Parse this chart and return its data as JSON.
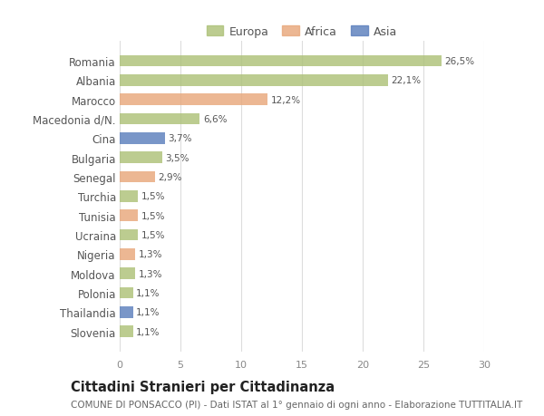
{
  "countries": [
    "Romania",
    "Albania",
    "Marocco",
    "Macedonia d/N.",
    "Cina",
    "Bulgaria",
    "Senegal",
    "Turchia",
    "Tunisia",
    "Ucraina",
    "Nigeria",
    "Moldova",
    "Polonia",
    "Thailandia",
    "Slovenia"
  ],
  "values": [
    26.5,
    22.1,
    12.2,
    6.6,
    3.7,
    3.5,
    2.9,
    1.5,
    1.5,
    1.5,
    1.3,
    1.3,
    1.1,
    1.1,
    1.1
  ],
  "labels": [
    "26,5%",
    "22,1%",
    "12,2%",
    "6,6%",
    "3,7%",
    "3,5%",
    "2,9%",
    "1,5%",
    "1,5%",
    "1,5%",
    "1,3%",
    "1,3%",
    "1,1%",
    "1,1%",
    "1,1%"
  ],
  "continents": [
    "Europa",
    "Europa",
    "Africa",
    "Europa",
    "Asia",
    "Europa",
    "Africa",
    "Europa",
    "Africa",
    "Europa",
    "Africa",
    "Europa",
    "Europa",
    "Asia",
    "Europa"
  ],
  "colors": {
    "Europa": "#adc178",
    "Africa": "#e8a87c",
    "Asia": "#5b7fbc"
  },
  "title": "Cittadini Stranieri per Cittadinanza",
  "subtitle": "COMUNE DI PONSACCO (PI) - Dati ISTAT al 1° gennaio di ogni anno - Elaborazione TUTTITALIA.IT",
  "xlim": [
    0,
    30
  ],
  "xticks": [
    0,
    5,
    10,
    15,
    20,
    25,
    30
  ],
  "background_color": "#ffffff",
  "grid_color": "#dddddd",
  "bar_height": 0.6,
  "title_fontsize": 10.5,
  "subtitle_fontsize": 7.5,
  "label_fontsize": 7.5,
  "ytick_fontsize": 8.5,
  "xtick_fontsize": 8,
  "legend_fontsize": 9
}
